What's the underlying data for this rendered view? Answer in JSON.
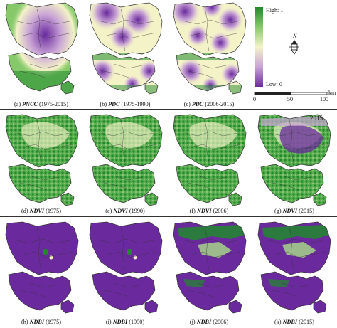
{
  "legend": {
    "high_label": "High: 1",
    "low_label": "Low: 0",
    "colors": [
      "#1f8a2b",
      "#86c96a",
      "#f4f3c8",
      "#c9a4d6",
      "#6a2a9e"
    ],
    "north_letter": "N",
    "scale": {
      "ticks": [
        "0",
        "50",
        "100"
      ],
      "unit": "km"
    }
  },
  "year_tag": "2015",
  "panels": [
    {
      "prefix": "(a) ",
      "var": "PNCC",
      "suffix": " (1975-2015)",
      "kind": "pncc"
    },
    {
      "prefix": "(b) ",
      "var": "PDC",
      "suffix": " (1975-1990)",
      "kind": "pdc1"
    },
    {
      "prefix": "(c) ",
      "var": "PDC",
      "suffix": " (2006-2015)",
      "kind": "pdc2"
    },
    {
      "prefix": "(d) ",
      "var": "NDVI",
      "suffix": " (1975)",
      "kind": "ndvi"
    },
    {
      "prefix": "(e) ",
      "var": "NDVI",
      "suffix": " (1990)",
      "kind": "ndvi"
    },
    {
      "prefix": "(f) ",
      "var": "NDVI",
      "suffix": " (2006)",
      "kind": "ndvi"
    },
    {
      "prefix": "(g) ",
      "var": "NDVI",
      "suffix": " (2015)",
      "kind": "ndvi15"
    },
    {
      "prefix": "(h) ",
      "var": "NDBI",
      "suffix": " (1975)",
      "kind": "ndbi"
    },
    {
      "prefix": "(i) ",
      "var": "NDBI",
      "suffix": " (1990)",
      "kind": "ndbi"
    },
    {
      "prefix": "(j) ",
      "var": "NDBI",
      "suffix": " (2006)",
      "kind": "ndbi2"
    },
    {
      "prefix": "(k) ",
      "var": "NDBI",
      "suffix": " (2015)",
      "kind": "ndbi2"
    }
  ]
}
